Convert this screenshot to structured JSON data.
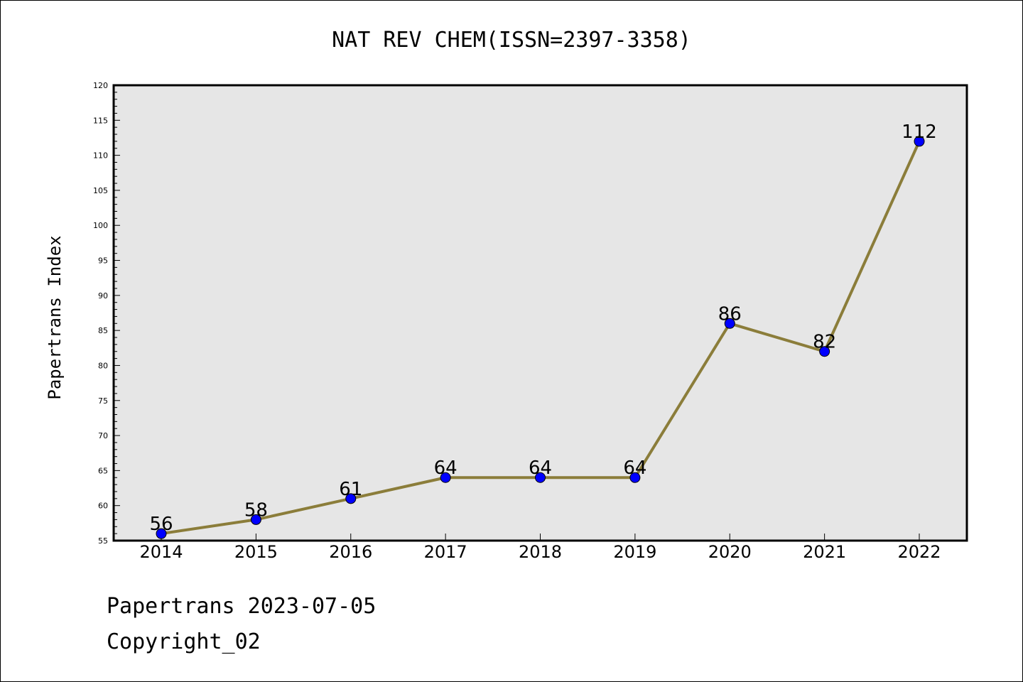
{
  "chart_data": {
    "type": "line",
    "title": "NAT REV CHEM(ISSN=2397-3358)",
    "xlabel": "",
    "ylabel": "Papertrans Index",
    "categories": [
      "2014",
      "2015",
      "2016",
      "2017",
      "2018",
      "2019",
      "2020",
      "2021",
      "2022"
    ],
    "values": [
      56,
      58,
      61,
      64,
      64,
      64,
      86,
      82,
      112
    ],
    "data_labels": [
      "56",
      "58",
      "61",
      "64",
      "64",
      "64",
      "86",
      "82",
      "112"
    ],
    "ylim": [
      55,
      120
    ],
    "y_major_ticks": [
      "55",
      "60",
      "65",
      "70",
      "75",
      "80",
      "85",
      "90",
      "95",
      "100",
      "105",
      "110",
      "115",
      "120"
    ],
    "grid": false,
    "legend": "none",
    "colors": {
      "line": "#8b7d3a",
      "marker": "#0000ff",
      "plot_background": "#e6e6e6"
    }
  },
  "footer": {
    "line1": "Papertrans 2023-07-05",
    "line2": "Copyright_02"
  }
}
